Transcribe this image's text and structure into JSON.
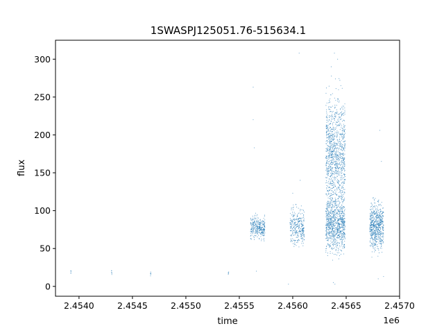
{
  "chart_data": {
    "type": "scatter",
    "title": "1SWASPJ125051.76-515634.1",
    "xlabel": "time",
    "ylabel": "flux",
    "x_offset_label": "1e6",
    "xlim": [
      2453780,
      2457000
    ],
    "ylim": [
      -13,
      325
    ],
    "x_ticks": [
      2.454,
      2.4545,
      2.455,
      2.4555,
      2.456,
      2.4565,
      2.457
    ],
    "x_tick_labels": [
      "2.4540",
      "2.4545",
      "2.4550",
      "2.4555",
      "2.4560",
      "2.4565",
      "2.4570"
    ],
    "y_ticks": [
      0,
      50,
      100,
      150,
      200,
      250,
      300
    ],
    "y_tick_labels": [
      "0",
      "50",
      "100",
      "150",
      "200",
      "250",
      "300"
    ],
    "grid": false,
    "marker_color": "#1f77b4",
    "clusters": [
      {
        "t_start": 2453922,
        "t_end": 2453927,
        "flux_center": 18,
        "flux_spread": 2,
        "count": 6
      },
      {
        "t_start": 2454302,
        "t_end": 2454308,
        "flux_center": 19,
        "flux_spread": 2,
        "count": 6
      },
      {
        "t_start": 2454668,
        "t_end": 2454673,
        "flux_center": 17,
        "flux_spread": 2,
        "count": 6
      },
      {
        "t_start": 2455395,
        "t_end": 2455402,
        "flux_center": 17,
        "flux_spread": 1.5,
        "count": 5
      },
      {
        "t_start": 2455605,
        "t_end": 2455740,
        "flux_center": 78,
        "flux_spread": 7,
        "count": 320
      },
      {
        "t_start": 2455975,
        "t_end": 2456108,
        "flux_center": 78,
        "flux_spread": 12,
        "count": 320
      },
      {
        "t_start": 2456310,
        "t_end": 2456490,
        "flux_center": 175,
        "flux_spread": 35,
        "count": 1100
      },
      {
        "t_start": 2456310,
        "t_end": 2456490,
        "flux_center": 82,
        "flux_spread": 18,
        "count": 900
      },
      {
        "t_start": 2456720,
        "t_end": 2456850,
        "flux_center": 80,
        "flux_spread": 15,
        "count": 650
      }
    ],
    "outliers": [
      {
        "t": 2455630,
        "flux": 263
      },
      {
        "t": 2455630,
        "flux": 220
      },
      {
        "t": 2455640,
        "flux": 183
      },
      {
        "t": 2455660,
        "flux": 20
      },
      {
        "t": 2456060,
        "flux": 308
      },
      {
        "t": 2456000,
        "flux": 123
      },
      {
        "t": 2456390,
        "flux": 308
      },
      {
        "t": 2456420,
        "flux": 300
      },
      {
        "t": 2456380,
        "flux": 5
      },
      {
        "t": 2456395,
        "flux": 3
      },
      {
        "t": 2456815,
        "flux": 206
      },
      {
        "t": 2456830,
        "flux": 165
      },
      {
        "t": 2456800,
        "flux": 10
      },
      {
        "t": 2456070,
        "flux": 140
      },
      {
        "t": 2455960,
        "flux": 3
      },
      {
        "t": 2456850,
        "flux": 13
      },
      {
        "t": 2456450,
        "flux": 265
      },
      {
        "t": 2456360,
        "flux": 290
      }
    ]
  }
}
